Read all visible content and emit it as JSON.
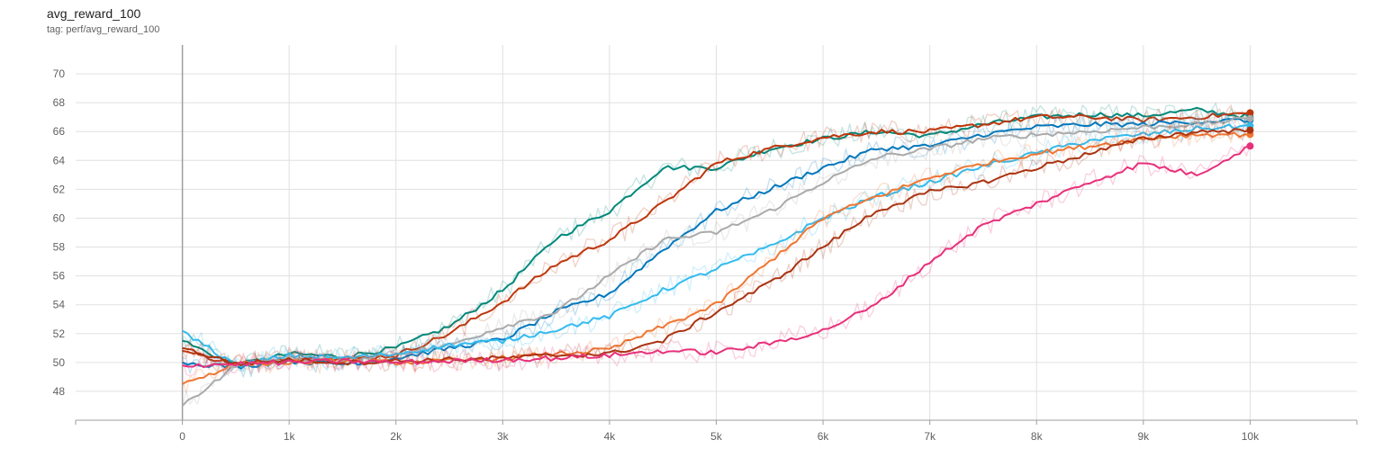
{
  "header": {
    "title": "avg_reward_100",
    "subtitle": "tag: perf/avg_reward_100"
  },
  "chart_data": {
    "type": "line",
    "title": "avg_reward_100",
    "subtitle": "tag: perf/avg_reward_100",
    "xlabel": "",
    "ylabel": "",
    "xlim": [
      -1000,
      11000
    ],
    "ylim": [
      46,
      72
    ],
    "x_ticks": [
      0,
      1000,
      2000,
      3000,
      4000,
      5000,
      6000,
      7000,
      8000,
      9000,
      10000
    ],
    "x_tick_labels": [
      "0",
      "1k",
      "2k",
      "3k",
      "4k",
      "5k",
      "6k",
      "7k",
      "8k",
      "9k",
      "10k"
    ],
    "y_ticks": [
      48,
      50,
      52,
      54,
      56,
      58,
      60,
      62,
      64,
      66,
      68,
      70
    ],
    "y_tick_labels": [
      "48",
      "50",
      "52",
      "54",
      "56",
      "58",
      "60",
      "62",
      "64",
      "66",
      "68",
      "70"
    ],
    "grid": true,
    "legend": "none",
    "series": [
      {
        "color": "#00897b",
        "x": [
          0,
          500,
          1000,
          1500,
          2000,
          2500,
          3000,
          3500,
          4000,
          4500,
          5000,
          5500,
          6000,
          6500,
          7000,
          7500,
          8000,
          8500,
          9000,
          9500,
          10000
        ],
        "values": [
          51.5,
          49.8,
          50.6,
          50.4,
          51.0,
          52.5,
          55.0,
          58.6,
          60.5,
          63.5,
          63.5,
          64.8,
          65.5,
          66.0,
          65.7,
          66.5,
          67.0,
          67.2,
          67.1,
          67.5,
          67.0
        ]
      },
      {
        "color": "#bf360c",
        "x": [
          0,
          500,
          1000,
          1500,
          2000,
          2500,
          3000,
          3500,
          4000,
          4500,
          5000,
          5500,
          6000,
          6500,
          7000,
          7500,
          8000,
          8500,
          9000,
          9500,
          10000
        ],
        "values": [
          50.8,
          49.9,
          50.3,
          50.2,
          50.5,
          52.0,
          54.2,
          56.8,
          58.5,
          61.0,
          63.8,
          64.8,
          65.6,
          66.0,
          66.0,
          66.5,
          67.0,
          67.0,
          66.8,
          67.0,
          67.3
        ]
      },
      {
        "color": "#0077bb",
        "x": [
          0,
          500,
          1000,
          1500,
          2000,
          2500,
          3000,
          3500,
          4000,
          4500,
          5000,
          5500,
          6000,
          6500,
          7000,
          7500,
          8000,
          8500,
          9000,
          9500,
          10000
        ],
        "values": [
          50.0,
          49.7,
          50.1,
          49.9,
          50.3,
          51.0,
          51.6,
          53.5,
          54.8,
          57.8,
          60.5,
          62.0,
          63.5,
          64.8,
          65.0,
          65.8,
          66.3,
          66.5,
          66.5,
          66.7,
          66.8
        ]
      },
      {
        "color": "#aaaaaa",
        "x": [
          0,
          500,
          1000,
          1500,
          2000,
          2500,
          3000,
          3500,
          4000,
          4500,
          5000,
          5500,
          6000,
          6500,
          7000,
          7500,
          8000,
          8500,
          9000,
          9500,
          10000
        ],
        "values": [
          47.0,
          49.8,
          50.3,
          50.2,
          50.6,
          51.2,
          52.5,
          53.5,
          56.0,
          58.5,
          59.0,
          60.5,
          62.5,
          64.2,
          64.8,
          65.5,
          65.8,
          66.0,
          66.3,
          66.5,
          66.9
        ]
      },
      {
        "color": "#33bbee",
        "x": [
          0,
          500,
          1000,
          1500,
          2000,
          2500,
          3000,
          3500,
          4000,
          4500,
          5000,
          5500,
          6000,
          6500,
          7000,
          7500,
          8000,
          8500,
          9000,
          9500,
          10000
        ],
        "values": [
          52.2,
          49.8,
          50.5,
          50.3,
          50.6,
          51.2,
          51.5,
          52.3,
          53.2,
          55.0,
          56.5,
          58.0,
          60.0,
          61.5,
          62.5,
          63.6,
          64.5,
          65.4,
          65.8,
          66.2,
          66.4
        ]
      },
      {
        "color": "#ee7733",
        "x": [
          0,
          500,
          1000,
          1500,
          2000,
          2500,
          3000,
          3500,
          4000,
          4500,
          5000,
          5500,
          6000,
          6500,
          7000,
          7500,
          8000,
          8500,
          9000,
          9500,
          10000
        ],
        "values": [
          48.5,
          49.9,
          50.0,
          50.1,
          50.0,
          50.1,
          50.3,
          50.6,
          50.9,
          52.5,
          54.0,
          57.0,
          60.0,
          61.5,
          62.8,
          63.8,
          64.5,
          65.0,
          65.5,
          65.8,
          65.8
        ]
      },
      {
        "color": "#aa3311",
        "x": [
          0,
          500,
          1000,
          1500,
          2000,
          2500,
          3000,
          3500,
          4000,
          4500,
          5000,
          5500,
          6000,
          6500,
          7000,
          7500,
          8000,
          8500,
          9000,
          9500,
          10000
        ],
        "values": [
          51.0,
          49.9,
          50.2,
          50.0,
          50.1,
          50.2,
          50.3,
          50.5,
          50.6,
          51.5,
          53.5,
          55.5,
          58.0,
          60.5,
          61.8,
          62.5,
          63.5,
          64.5,
          65.5,
          66.0,
          66.1
        ]
      },
      {
        "color": "#e7307a",
        "x": [
          0,
          500,
          1000,
          1500,
          2000,
          2500,
          3000,
          3500,
          4000,
          4500,
          5000,
          5500,
          6000,
          6500,
          7000,
          7500,
          8000,
          8500,
          9000,
          9500,
          10000
        ],
        "values": [
          49.8,
          49.9,
          50.0,
          50.1,
          50.0,
          50.1,
          50.2,
          50.3,
          50.5,
          50.8,
          50.7,
          51.3,
          52.2,
          54.0,
          57.0,
          59.5,
          61.0,
          62.5,
          63.8,
          63.0,
          65.0
        ]
      }
    ]
  }
}
